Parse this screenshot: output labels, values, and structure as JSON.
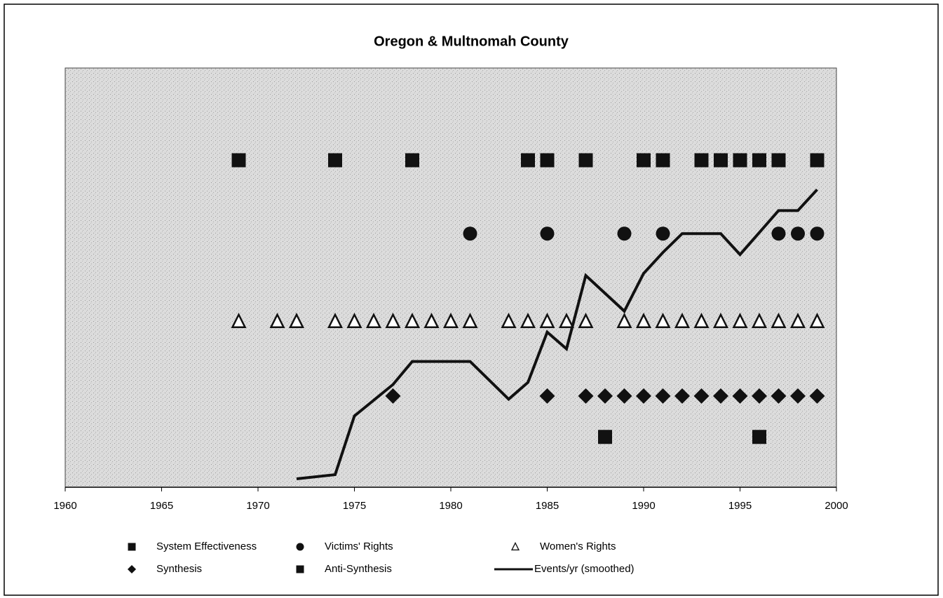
{
  "chart_data": {
    "type": "scatter",
    "title": "Oregon & Multnomah County",
    "xlim": [
      1960,
      2000
    ],
    "xticks": [
      1960,
      1965,
      1970,
      1975,
      1980,
      1985,
      1990,
      1995,
      2000
    ],
    "ylim": [
      0,
      20
    ],
    "series": [
      {
        "name": "System Effectiveness",
        "marker": "square",
        "color": "#111111",
        "x": [
          1969,
          1974,
          1978,
          1984,
          1985,
          1987,
          1990,
          1991,
          1993,
          1994,
          1995,
          1996,
          1997,
          1999
        ],
        "values": [
          15.6,
          15.6,
          15.6,
          15.6,
          15.6,
          15.6,
          15.6,
          15.6,
          15.6,
          15.6,
          15.6,
          15.6,
          15.6,
          15.6
        ]
      },
      {
        "name": "Victims' Rights",
        "marker": "circle",
        "color": "#111111",
        "x": [
          1981,
          1985,
          1989,
          1991,
          1997,
          1998,
          1999
        ],
        "values": [
          12.1,
          12.1,
          12.1,
          12.1,
          12.1,
          12.1,
          12.1
        ]
      },
      {
        "name": "Women's Rights",
        "marker": "triangle",
        "color": "#111111",
        "x": [
          1969,
          1971,
          1972,
          1974,
          1975,
          1976,
          1977,
          1978,
          1979,
          1980,
          1981,
          1983,
          1984,
          1985,
          1986,
          1987,
          1989,
          1990,
          1991,
          1992,
          1993,
          1994,
          1995,
          1996,
          1997,
          1998,
          1999
        ],
        "values": [
          7.9,
          7.9,
          7.9,
          7.9,
          7.9,
          7.9,
          7.9,
          7.9,
          7.9,
          7.9,
          7.9,
          7.9,
          7.9,
          7.9,
          7.9,
          7.9,
          7.9,
          7.9,
          7.9,
          7.9,
          7.9,
          7.9,
          7.9,
          7.9,
          7.9,
          7.9,
          7.9
        ]
      },
      {
        "name": "Synthesis",
        "marker": "diamond",
        "color": "#111111",
        "x": [
          1977,
          1985,
          1987,
          1988,
          1989,
          1990,
          1991,
          1992,
          1993,
          1994,
          1995,
          1996,
          1997,
          1998,
          1999
        ],
        "values": [
          4.35,
          4.35,
          4.35,
          4.35,
          4.35,
          4.35,
          4.35,
          4.35,
          4.35,
          4.35,
          4.35,
          4.35,
          4.35,
          4.35,
          4.35
        ]
      },
      {
        "name": "Anti-Synthesis",
        "marker": "square",
        "color": "#111111",
        "x": [
          1988,
          1996
        ],
        "values": [
          2.4,
          2.4
        ]
      },
      {
        "name": "Events/yr (smoothed)",
        "marker": "line",
        "color": "#111111",
        "x": [
          1972,
          1974,
          1975,
          1977,
          1978,
          1981,
          1983,
          1984,
          1985,
          1986,
          1987,
          1989,
          1990,
          1991,
          1992,
          1994,
          1995,
          1997,
          1998,
          1999
        ],
        "values": [
          0.4,
          0.6,
          3.4,
          4.9,
          6,
          6,
          4.2,
          5,
          7.4,
          6.6,
          10.1,
          8.4,
          10.2,
          11.2,
          12.1,
          12.1,
          11.1,
          13.2,
          13.2,
          14.2
        ]
      }
    ]
  }
}
